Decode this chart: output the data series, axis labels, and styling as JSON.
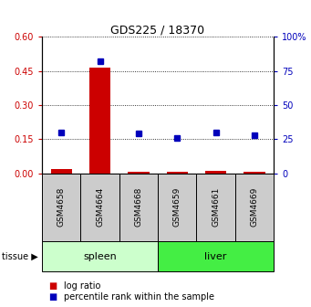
{
  "title": "GDS225 / 18370",
  "samples": [
    "GSM4658",
    "GSM4664",
    "GSM4668",
    "GSM4659",
    "GSM4661",
    "GSM4669"
  ],
  "log_ratio": [
    0.018,
    0.465,
    0.008,
    0.008,
    0.012,
    0.007
  ],
  "percentile_rank": [
    30,
    82,
    29,
    26,
    30,
    28
  ],
  "left_ylim": [
    0,
    0.6
  ],
  "right_ylim": [
    0,
    100
  ],
  "left_yticks": [
    0,
    0.15,
    0.3,
    0.45,
    0.6
  ],
  "right_yticks": [
    0,
    25,
    50,
    75,
    100
  ],
  "right_yticklabels": [
    "0",
    "25",
    "50",
    "75",
    "100%"
  ],
  "bar_color": "#cc0000",
  "dot_color": "#0000bb",
  "left_tick_color": "#cc0000",
  "right_tick_color": "#0000bb",
  "spleen_color": "#ccffcc",
  "liver_color": "#44ee44",
  "sample_box_color": "#cccccc"
}
